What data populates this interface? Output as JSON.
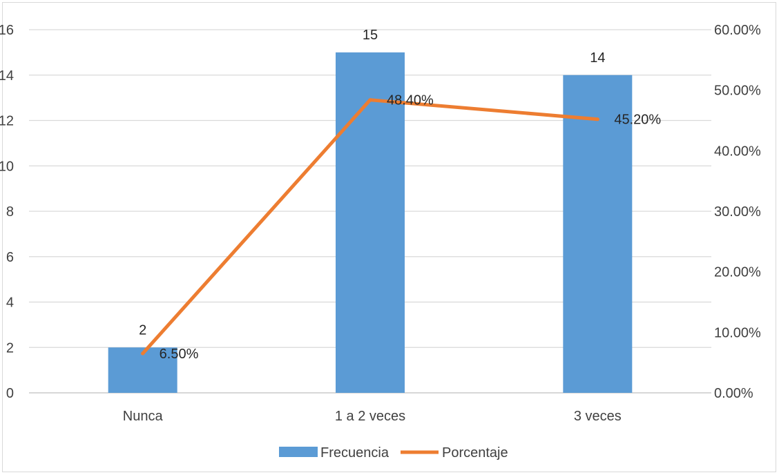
{
  "chart_data": {
    "type": "bar",
    "categories": [
      "Nunca",
      "1 a 2 veces",
      "3 veces"
    ],
    "series": [
      {
        "name": "Frecuencia",
        "type": "bar",
        "axis": "primary",
        "values": [
          2,
          15,
          14
        ],
        "labels": [
          "2",
          "15",
          "14"
        ],
        "color": "#5b9bd5"
      },
      {
        "name": "Porcentaje",
        "type": "line",
        "axis": "secondary",
        "values": [
          0.065,
          0.484,
          0.452
        ],
        "labels": [
          "6.50%",
          "48.40%",
          "45.20%"
        ],
        "color": "#ed7d31"
      }
    ],
    "y_primary": {
      "range": [
        0,
        16
      ],
      "ticks": [
        "0",
        "2",
        "4",
        "6",
        "8",
        "10",
        "12",
        "14",
        "16"
      ]
    },
    "y_secondary": {
      "range": [
        0,
        0.6
      ],
      "ticks": [
        "0.00%",
        "10.00%",
        "20.00%",
        "30.00%",
        "40.00%",
        "50.00%",
        "60.00%"
      ]
    },
    "grid": true,
    "legend_position": "bottom"
  }
}
